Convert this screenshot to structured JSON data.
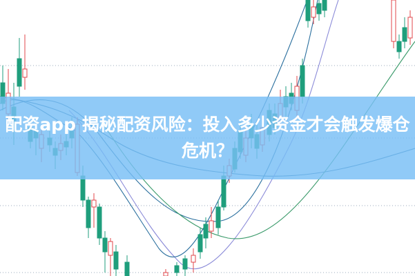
{
  "article": {
    "title": "配资app 揭秘配资风险：投入多少资金才会触发爆仓危机？"
  },
  "colors": {
    "banner": "#78bef5",
    "candle_up": "#e0464a",
    "candle_down": "#1f9e7c",
    "ma_line": "#2a6f9e",
    "ma_line2": "#8a8ad8",
    "ma_line3": "#3a9a6a"
  }
}
